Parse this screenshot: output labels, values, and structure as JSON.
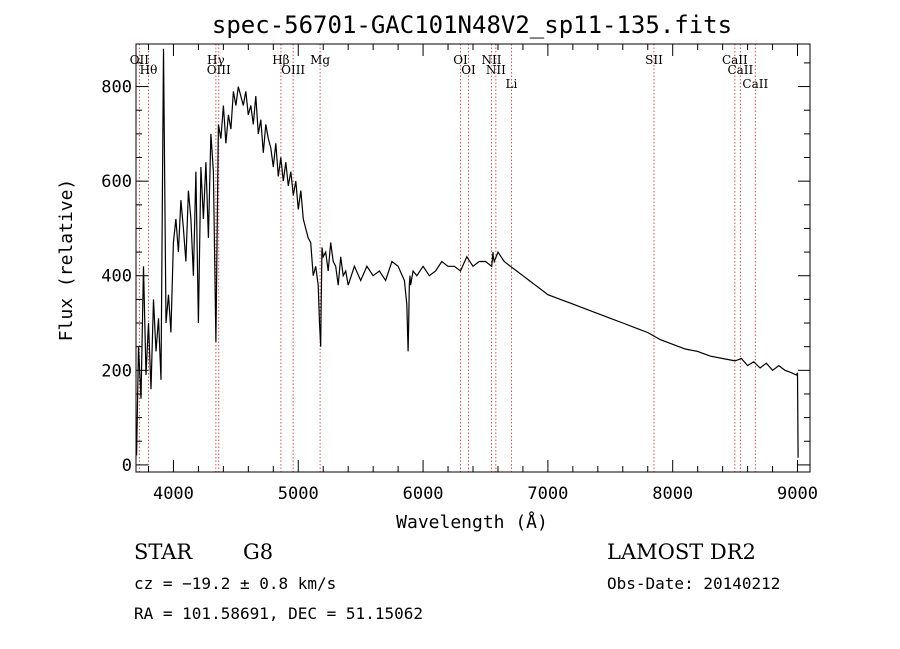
{
  "chart_data": {
    "type": "line",
    "title": "spec-56701-GAC101N48V2_sp11-135.fits",
    "xlabel": "Wavelength (Å)",
    "ylabel": "Flux (relative)",
    "xlim": [
      3700,
      9100
    ],
    "ylim": [
      -15,
      890
    ],
    "x_ticks": [
      4000,
      5000,
      6000,
      7000,
      8000,
      9000
    ],
    "y_ticks": [
      0,
      200,
      400,
      600,
      800
    ],
    "grid": false,
    "series": [
      {
        "color": "#000000",
        "x": [
          3705,
          3720,
          3740,
          3760,
          3780,
          3800,
          3820,
          3840,
          3860,
          3880,
          3900,
          3920,
          3940,
          3960,
          3980,
          4000,
          4020,
          4040,
          4060,
          4080,
          4100,
          4120,
          4140,
          4160,
          4180,
          4200,
          4220,
          4240,
          4260,
          4280,
          4300,
          4320,
          4340,
          4360,
          4380,
          4400,
          4420,
          4440,
          4460,
          4480,
          4500,
          4520,
          4540,
          4560,
          4580,
          4600,
          4620,
          4640,
          4660,
          4680,
          4700,
          4720,
          4740,
          4760,
          4780,
          4800,
          4820,
          4840,
          4860,
          4880,
          4900,
          4920,
          4940,
          4960,
          4980,
          5000,
          5020,
          5040,
          5060,
          5080,
          5100,
          5120,
          5140,
          5160,
          5170,
          5180,
          5183,
          5190,
          5200,
          5220,
          5240,
          5260,
          5280,
          5300,
          5320,
          5340,
          5360,
          5380,
          5400,
          5450,
          5500,
          5550,
          5600,
          5650,
          5700,
          5750,
          5800,
          5850,
          5870,
          5880,
          5885,
          5890,
          5895,
          5900,
          5920,
          5950,
          6000,
          6050,
          6100,
          6150,
          6200,
          6250,
          6300,
          6350,
          6400,
          6450,
          6500,
          6550,
          6560,
          6563,
          6570,
          6600,
          6650,
          6700,
          6750,
          6800,
          6850,
          6900,
          6950,
          7000,
          7100,
          7200,
          7300,
          7400,
          7500,
          7600,
          7700,
          7800,
          7900,
          8000,
          8100,
          8200,
          8300,
          8400,
          8500,
          8550,
          8600,
          8650,
          8700,
          8750,
          8800,
          8850,
          8900,
          8950,
          8990,
          9000,
          9005
        ],
        "y": [
          20,
          250,
          140,
          420,
          190,
          300,
          160,
          350,
          240,
          310,
          180,
          880,
          300,
          360,
          280,
          470,
          520,
          450,
          560,
          500,
          430,
          580,
          520,
          400,
          620,
          300,
          630,
          520,
          640,
          480,
          700,
          620,
          260,
          720,
          690,
          760,
          680,
          740,
          710,
          790,
          760,
          800,
          780,
          760,
          790,
          740,
          760,
          720,
          780,
          700,
          730,
          660,
          720,
          690,
          670,
          630,
          680,
          610,
          650,
          600,
          640,
          590,
          620,
          570,
          600,
          540,
          580,
          520,
          500,
          480,
          470,
          400,
          420,
          380,
          300,
          250,
          330,
          460,
          440,
          450,
          410,
          470,
          430,
          420,
          380,
          440,
          400,
          410,
          380,
          420,
          390,
          420,
          400,
          410,
          390,
          430,
          420,
          390,
          340,
          240,
          300,
          380,
          400,
          380,
          410,
          400,
          420,
          400,
          410,
          430,
          420,
          420,
          410,
          440,
          420,
          430,
          430,
          420,
          450,
          440,
          430,
          450,
          430,
          420,
          410,
          400,
          390,
          380,
          370,
          360,
          350,
          340,
          330,
          320,
          310,
          300,
          290,
          280,
          265,
          255,
          245,
          240,
          230,
          225,
          220,
          225,
          210,
          218,
          205,
          215,
          200,
          210,
          200,
          195,
          190,
          195,
          15
        ]
      }
    ],
    "spectral_lines": [
      {
        "wavelength": 3727,
        "label": "OII"
      },
      {
        "wavelength": 3800,
        "label": "Hθ"
      },
      {
        "wavelength": 4340,
        "label": "Hγ"
      },
      {
        "wavelength": 4363,
        "label": "OIII"
      },
      {
        "wavelength": 4861,
        "label": "Hβ"
      },
      {
        "wavelength": 4959,
        "label": "OIII"
      },
      {
        "wavelength": 5175,
        "label": "Mg"
      },
      {
        "wavelength": 6300,
        "label": "OI"
      },
      {
        "wavelength": 6364,
        "label": "OI"
      },
      {
        "wavelength": 6548,
        "label": "NII"
      },
      {
        "wavelength": 6583,
        "label": "NII"
      },
      {
        "wavelength": 6708,
        "label": "Li"
      },
      {
        "wavelength": 7850,
        "label": "SII"
      },
      {
        "wavelength": 8498,
        "label": "CaII"
      },
      {
        "wavelength": 8542,
        "label": "CaII"
      },
      {
        "wavelength": 8662,
        "label": "CaII"
      }
    ],
    "line_color": "#d04040"
  },
  "info": {
    "class": "STAR",
    "subclass": "G8",
    "survey": "LAMOST DR2",
    "cz": "cz = −19.2 ± 0.8 km/s",
    "obs_date": "Obs-Date: 20140212",
    "coords": "RA = 101.58691, DEC =  51.15062"
  }
}
